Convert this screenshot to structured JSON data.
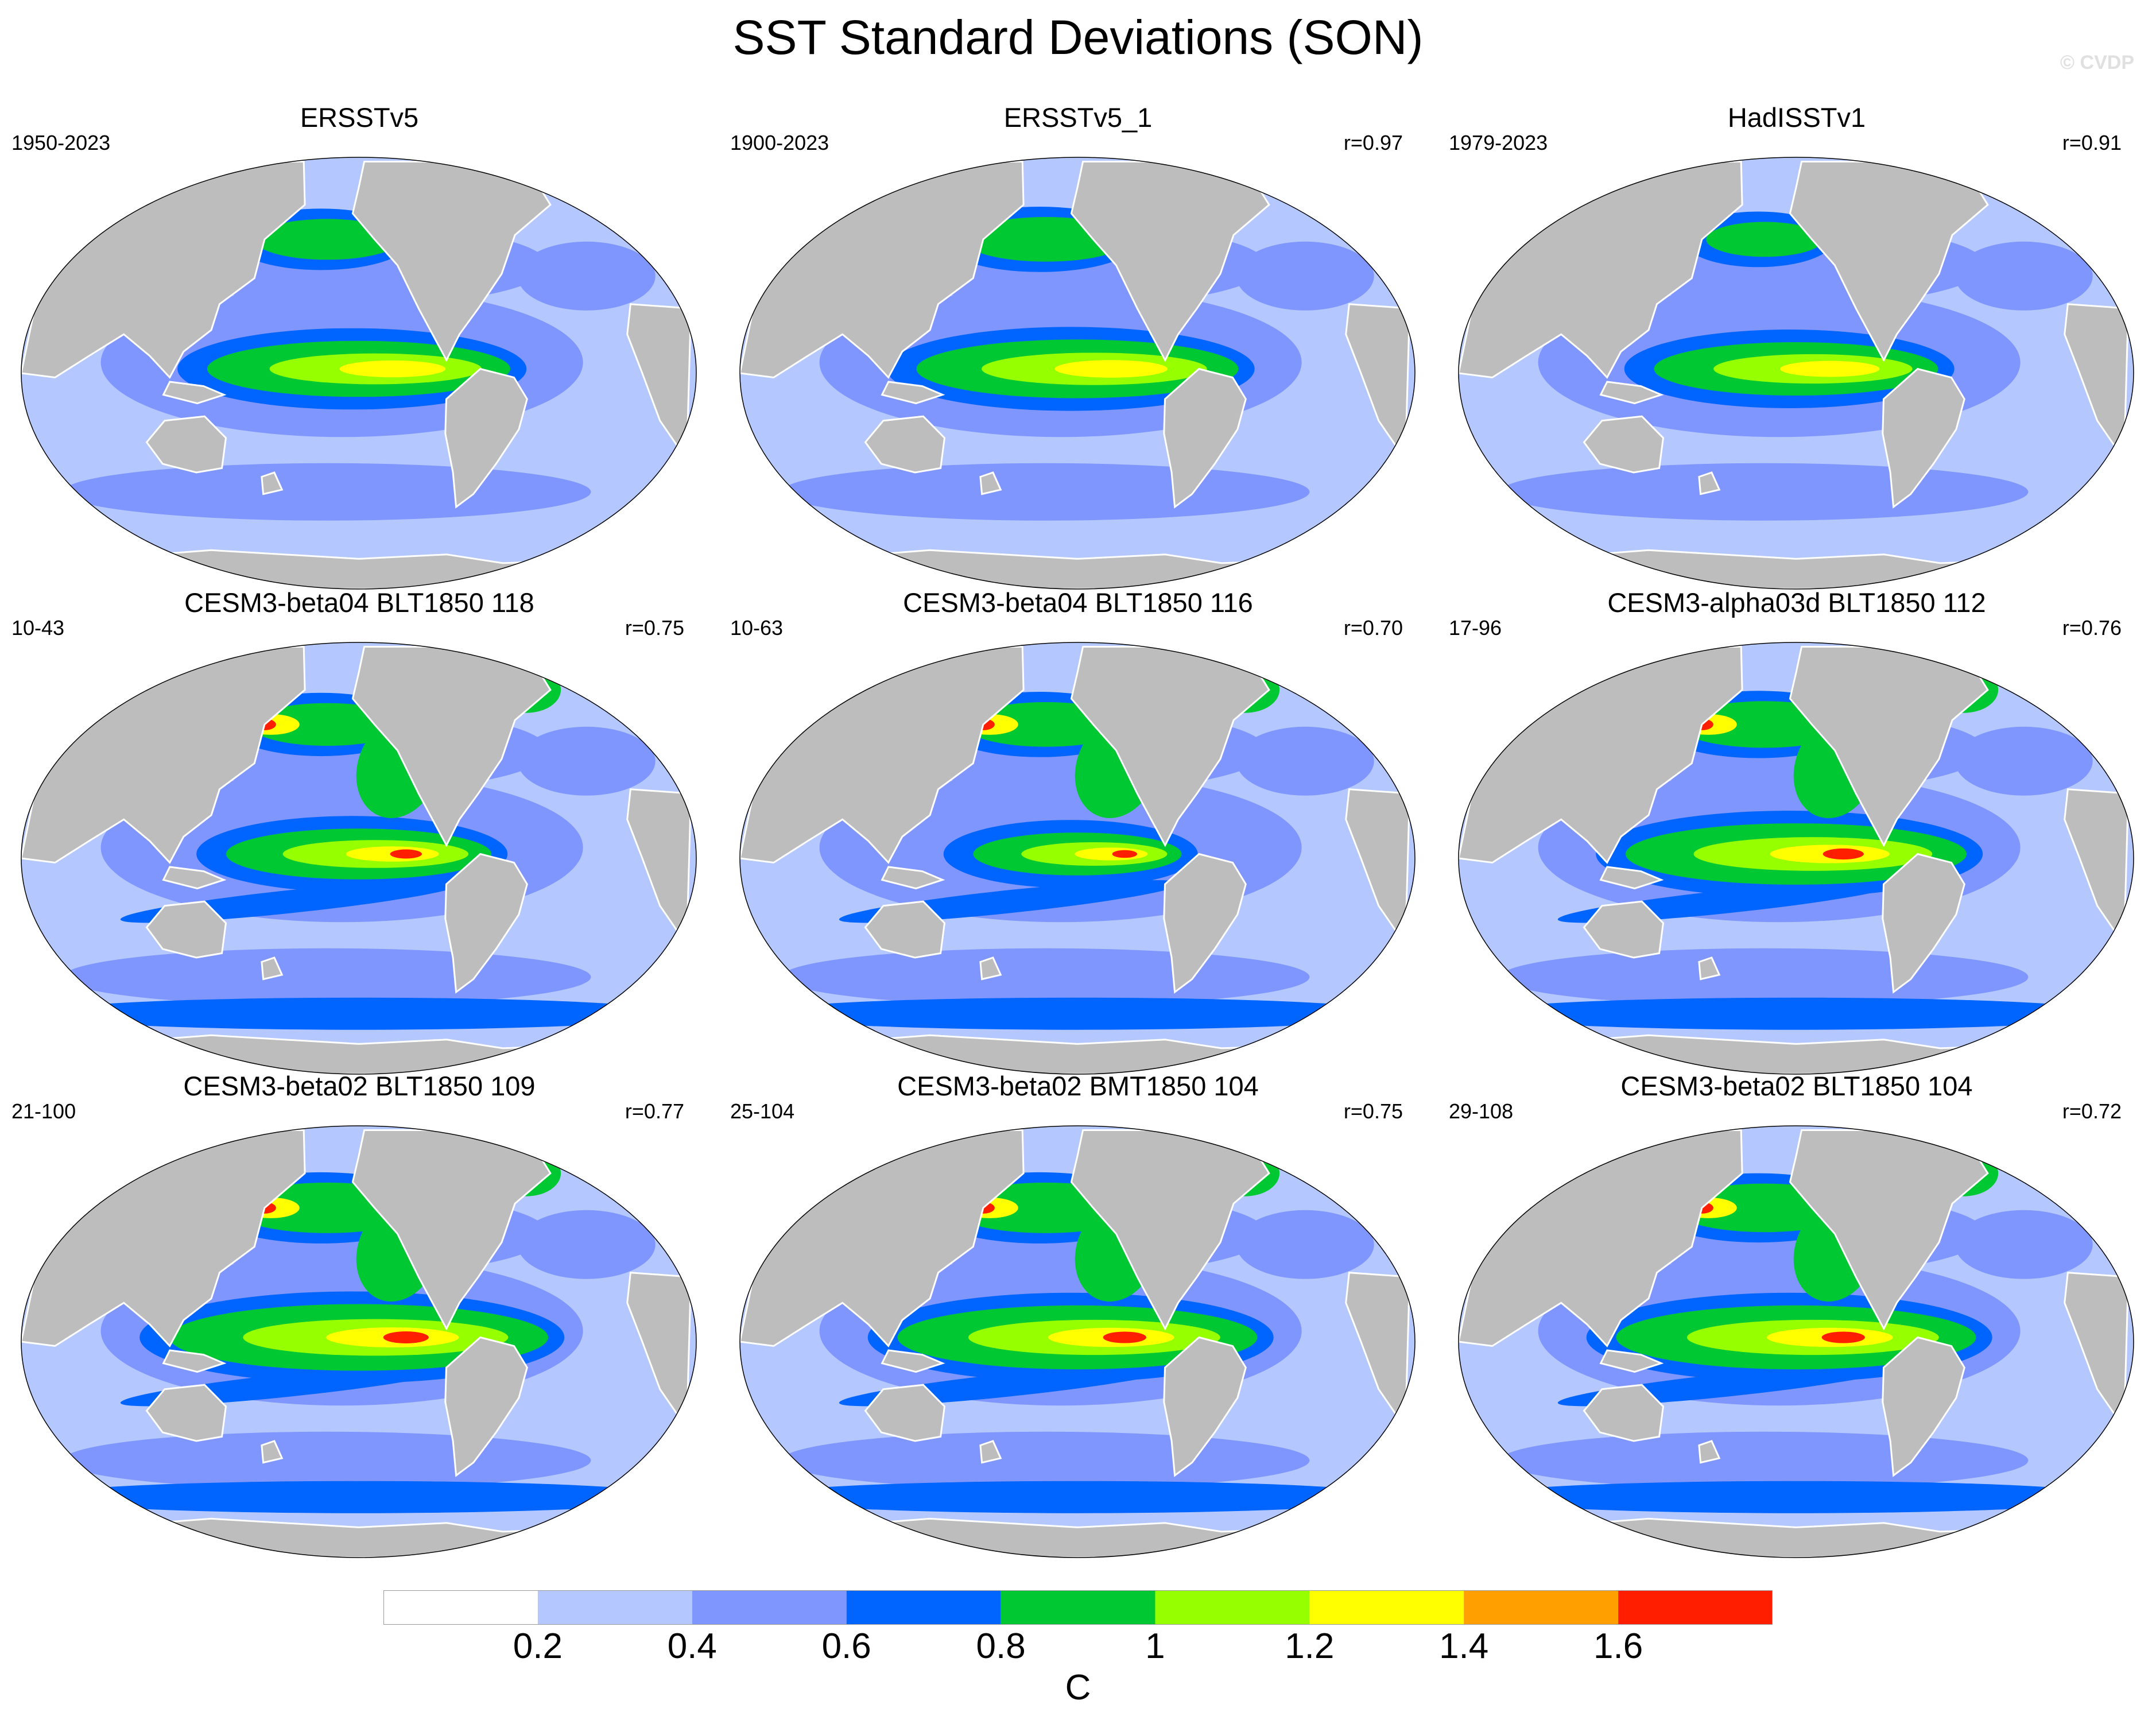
{
  "title": "SST Standard Deviations (SON)",
  "watermark": "© CVDP",
  "panels": [
    {
      "title": "ERSSTv5",
      "years": "1950-2023",
      "corr": "",
      "enso": 0.8,
      "npac": 0.75,
      "high": 0.0
    },
    {
      "title": "ERSSTv5_1",
      "years": "1900-2023",
      "corr": "r=0.97",
      "enso": 0.85,
      "npac": 0.85,
      "high": 0.0
    },
    {
      "title": "HadISSTv1",
      "years": "1979-2023",
      "corr": "r=0.91",
      "enso": 0.75,
      "npac": 0.6,
      "high": 0.0
    },
    {
      "title": "CESM3-beta04 BLT1850 118",
      "years": "10-43",
      "corr": "r=0.75",
      "enso": 0.7,
      "npac": 0.8,
      "high": 1.0
    },
    {
      "title": "CESM3-beta04 BLT1850 116",
      "years": "10-63",
      "corr": "r=0.70",
      "enso": 0.55,
      "npac": 0.85,
      "high": 1.0
    },
    {
      "title": "CESM3-alpha03d BLT1850 112",
      "years": "17-96",
      "corr": "r=0.76",
      "enso": 0.9,
      "npac": 0.9,
      "high": 1.0
    },
    {
      "title": "CESM3-beta02 BLT1850 109",
      "years": "21-100",
      "corr": "r=0.77",
      "enso": 1.0,
      "npac": 1.0,
      "high": 1.0
    },
    {
      "title": "CESM3-beta02 BMT1850 104",
      "years": "25-104",
      "corr": "r=0.75",
      "enso": 0.95,
      "npac": 1.0,
      "high": 1.0
    },
    {
      "title": "CESM3-beta02 BLT1850 104",
      "years": "29-108",
      "corr": "r=0.72",
      "enso": 0.95,
      "npac": 0.95,
      "high": 1.0
    }
  ],
  "colorbar": {
    "colors": [
      "#ffffff",
      "#b4c8ff",
      "#8096ff",
      "#0064ff",
      "#00c832",
      "#96ff00",
      "#ffff00",
      "#ffa000",
      "#ff1e00"
    ],
    "ticks": [
      "0.2",
      "0.4",
      "0.6",
      "0.8",
      "1",
      "1.2",
      "1.4",
      "1.6"
    ],
    "unit": "C"
  },
  "colors": {
    "land": "#bdbdbd",
    "ocean_low": "#b4c8ff",
    "ocean_mid": "#8096ff",
    "coast": "#ffffff"
  }
}
